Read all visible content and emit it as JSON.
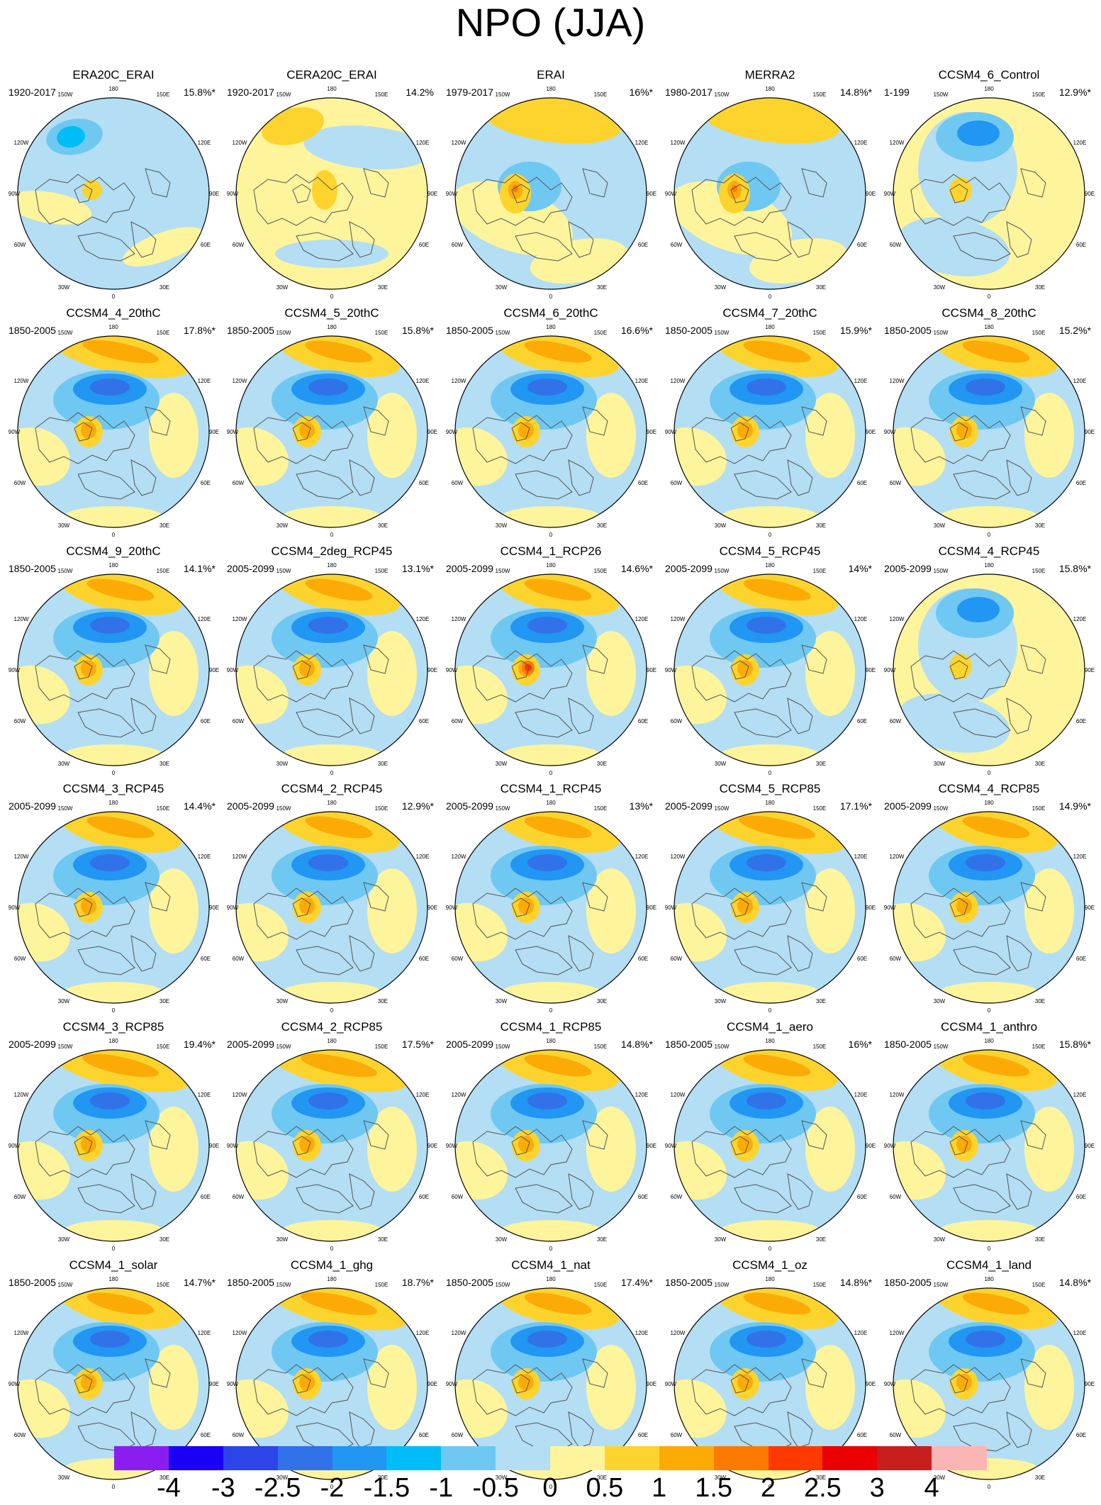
{
  "title": "NPO (JJA)",
  "longitude_labels": [
    "180",
    "150W",
    "150E",
    "120W",
    "120E",
    "90W",
    "90E",
    "60W",
    "60E",
    "30W",
    "30E",
    "0"
  ],
  "panels": [
    {
      "name": "ERA20C_ERAI",
      "period": "1920-2017",
      "variance": "15.8%*",
      "pattern": "weak"
    },
    {
      "name": "CERA20C_ERAI",
      "period": "1920-2017",
      "variance": "14.2%",
      "pattern": "weak-pos"
    },
    {
      "name": "ERAI",
      "period": "1979-2017",
      "variance": "16%*",
      "pattern": "reanalysis"
    },
    {
      "name": "MERRA2",
      "period": "1980-2017",
      "variance": "14.8%*",
      "pattern": "reanalysis"
    },
    {
      "name": "CCSM4_6_Control",
      "period": "1-199",
      "variance": "12.9%*",
      "pattern": "control"
    },
    {
      "name": "CCSM4_4_20thC",
      "period": "1850-2005",
      "variance": "17.8%*",
      "pattern": "strong"
    },
    {
      "name": "CCSM4_5_20thC",
      "period": "1850-2005",
      "variance": "15.8%*",
      "pattern": "standard"
    },
    {
      "name": "CCSM4_6_20thC",
      "period": "1850-2005",
      "variance": "16.6%*",
      "pattern": "standard"
    },
    {
      "name": "CCSM4_7_20thC",
      "period": "1850-2005",
      "variance": "15.9%*",
      "pattern": "standard"
    },
    {
      "name": "CCSM4_8_20thC",
      "period": "1850-2005",
      "variance": "15.2%*",
      "pattern": "standard"
    },
    {
      "name": "CCSM4_9_20thC",
      "period": "1850-2005",
      "variance": "14.1%*",
      "pattern": "standard"
    },
    {
      "name": "CCSM4_2deg_RCP45",
      "period": "2005-2099",
      "variance": "13.1%*",
      "pattern": "standard"
    },
    {
      "name": "CCSM4_1_RCP26",
      "period": "2005-2099",
      "variance": "14.6%*",
      "pattern": "peak"
    },
    {
      "name": "CCSM4_5_RCP45",
      "period": "2005-2099",
      "variance": "14%*",
      "pattern": "standard"
    },
    {
      "name": "CCSM4_4_RCP45",
      "period": "2005-2099",
      "variance": "15.8%*",
      "pattern": "control"
    },
    {
      "name": "CCSM4_3_RCP45",
      "period": "2005-2099",
      "variance": "14.4%*",
      "pattern": "standard"
    },
    {
      "name": "CCSM4_2_RCP45",
      "period": "2005-2099",
      "variance": "12.9%*",
      "pattern": "standard"
    },
    {
      "name": "CCSM4_1_RCP45",
      "period": "2005-2099",
      "variance": "13%*",
      "pattern": "standard"
    },
    {
      "name": "CCSM4_5_RCP85",
      "period": "2005-2099",
      "variance": "17.1%*",
      "pattern": "strong"
    },
    {
      "name": "CCSM4_4_RCP85",
      "period": "2005-2099",
      "variance": "14.9%*",
      "pattern": "standard"
    },
    {
      "name": "CCSM4_3_RCP85",
      "period": "2005-2099",
      "variance": "19.4%*",
      "pattern": "strong"
    },
    {
      "name": "CCSM4_2_RCP85",
      "period": "2005-2099",
      "variance": "17.5%*",
      "pattern": "strong"
    },
    {
      "name": "CCSM4_1_RCP85",
      "period": "2005-2099",
      "variance": "14.8%*",
      "pattern": "standard"
    },
    {
      "name": "CCSM4_1_aero",
      "period": "1850-2005",
      "variance": "16%*",
      "pattern": "standard"
    },
    {
      "name": "CCSM4_1_anthro",
      "period": "1850-2005",
      "variance": "15.8%*",
      "pattern": "standard"
    },
    {
      "name": "CCSM4_1_solar",
      "period": "1850-2005",
      "variance": "14.7%*",
      "pattern": "standard"
    },
    {
      "name": "CCSM4_1_ghg",
      "period": "1850-2005",
      "variance": "18.7%*",
      "pattern": "strong"
    },
    {
      "name": "CCSM4_1_nat",
      "period": "1850-2005",
      "variance": "17.4%*",
      "pattern": "standard"
    },
    {
      "name": "CCSM4_1_oz",
      "period": "1850-2005",
      "variance": "14.8%*",
      "pattern": "standard"
    },
    {
      "name": "CCSM4_1_land",
      "period": "1850-2005",
      "variance": "14.8%*",
      "pattern": "standard"
    }
  ],
  "colorbar": {
    "labels": [
      "-4",
      "-3",
      "-2.5",
      "-2",
      "-1.5",
      "-1",
      "-0.5",
      "0",
      "0.5",
      "1",
      "1.5",
      "2",
      "2.5",
      "3",
      "4"
    ],
    "colors": [
      "#8a1ef0",
      "#1a00f5",
      "#2b45e8",
      "#3172e8",
      "#2196f3",
      "#00bdf7",
      "#6fc8f2",
      "#b3def4",
      "#fdf49c",
      "#fdd42e",
      "#fcab06",
      "#fd7a00",
      "#fe3a00",
      "#ea0000",
      "#c81e1e",
      "#fcb5b5"
    ]
  }
}
